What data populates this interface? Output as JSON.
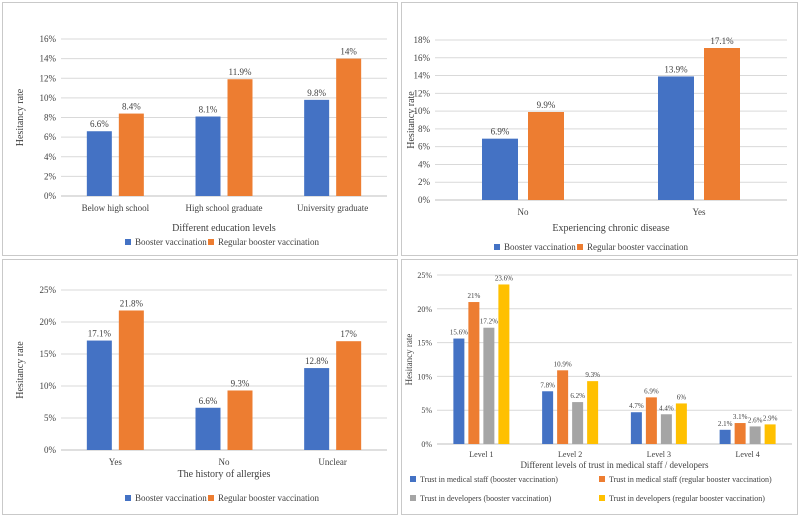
{
  "colors": {
    "booster": "#4472C4",
    "regular": "#ED7D31",
    "dev_booster": "#A5A5A5",
    "dev_regular": "#FFC000",
    "grid": "#d9d9d9",
    "axis": "#bfbfbf",
    "text": "#404040"
  },
  "chart_data": [
    {
      "type": "bar",
      "ylabel": "Hesitancy rate",
      "xlabel": "Different education levels",
      "ylim": [
        0,
        16
      ],
      "yticks": [
        0,
        2,
        4,
        6,
        8,
        10,
        12,
        14,
        16
      ],
      "ytick_labels": [
        "0%",
        "2%",
        "4%",
        "6%",
        "8%",
        "10%",
        "12%",
        "14%",
        "16%"
      ],
      "categories": [
        "Below high school",
        "High school graduate",
        "University graduate"
      ],
      "series": [
        {
          "name": "Booster vaccination",
          "color": "#4472C4",
          "values": [
            6.6,
            8.1,
            9.8
          ],
          "labels": [
            "6.6%",
            "8.1%",
            "9.8%"
          ]
        },
        {
          "name": "Regular booster vaccination",
          "color": "#ED7D31",
          "values": [
            8.4,
            11.9,
            14
          ],
          "labels": [
            "8.4%",
            "11.9%",
            "14%"
          ]
        }
      ],
      "legend": [
        "Booster vaccination",
        "Regular booster vaccination"
      ]
    },
    {
      "type": "bar",
      "ylabel": "Hesitancy rate",
      "xlabel": "Experiencing chronic disease",
      "ylim": [
        0,
        18
      ],
      "yticks": [
        0,
        2,
        4,
        6,
        8,
        10,
        12,
        14,
        16,
        18
      ],
      "ytick_labels": [
        "0%",
        "2%",
        "4%",
        "6%",
        "8%",
        "10%",
        "12%",
        "14%",
        "16%",
        "18%"
      ],
      "categories": [
        "No",
        "Yes"
      ],
      "series": [
        {
          "name": "Booster vaccination",
          "color": "#4472C4",
          "values": [
            6.9,
            13.9
          ],
          "labels": [
            "6.9%",
            "13.9%"
          ]
        },
        {
          "name": "Regular booster vaccination",
          "color": "#ED7D31",
          "values": [
            9.9,
            17.1
          ],
          "labels": [
            "9.9%",
            "17.1%"
          ]
        }
      ],
      "legend": [
        "Booster vaccination",
        "Regular booster vaccination"
      ]
    },
    {
      "type": "bar",
      "ylabel": "Hesitancy rate",
      "xlabel": "The history of allergies",
      "ylim": [
        0,
        25
      ],
      "yticks": [
        0,
        5,
        10,
        15,
        20,
        25
      ],
      "ytick_labels": [
        "0%",
        "5%",
        "10%",
        "15%",
        "20%",
        "25%"
      ],
      "categories": [
        "Yes",
        "No",
        "Unclear"
      ],
      "series": [
        {
          "name": "Booster vaccination",
          "color": "#4472C4",
          "values": [
            17.1,
            6.6,
            12.8
          ],
          "labels": [
            "17.1%",
            "6.6%",
            "12.8%"
          ]
        },
        {
          "name": "Regular booster vaccination",
          "color": "#ED7D31",
          "values": [
            21.8,
            9.3,
            17
          ],
          "labels": [
            "21.8%",
            "9.3%",
            "17%"
          ]
        }
      ],
      "legend": [
        "Booster vaccination",
        "Regular booster vaccination"
      ]
    },
    {
      "type": "bar",
      "ylabel": "Hesitancy rate",
      "xlabel": "Different levels of trust in medical staff / developers",
      "ylim": [
        0,
        25
      ],
      "yticks": [
        0,
        5,
        10,
        15,
        20,
        25
      ],
      "ytick_labels": [
        "0%",
        "5%",
        "10%",
        "15%",
        "20%",
        "25%"
      ],
      "categories": [
        "Level 1",
        "Level 2",
        "Level 3",
        "Level 4"
      ],
      "series": [
        {
          "name": "Trust in medical staff (booster vaccination)",
          "color": "#4472C4",
          "values": [
            15.6,
            7.8,
            4.7,
            2.1
          ],
          "labels": [
            "15.6%",
            "7.8%",
            "4.7%",
            "2.1%"
          ]
        },
        {
          "name": "Trust in medical staff (regular booster vaccination)",
          "color": "#ED7D31",
          "values": [
            21,
            10.9,
            6.9,
            3.1
          ],
          "labels": [
            "21%",
            "10.9%",
            "6.9%",
            "3.1%"
          ]
        },
        {
          "name": "Trust in  developers (booster vaccination)",
          "color": "#A5A5A5",
          "values": [
            17.2,
            6.2,
            4.4,
            2.6
          ],
          "labels": [
            "17.2%",
            "6.2%",
            "4.4%",
            "2.6%"
          ]
        },
        {
          "name": "Trust in  developers (regular booster vaccination)",
          "color": "#FFC000",
          "values": [
            23.6,
            9.3,
            6,
            2.9
          ],
          "labels": [
            "23.6%",
            "9.3%",
            "6%",
            "2.9%"
          ]
        }
      ],
      "legend": [
        "Trust in medical staff (booster vaccination)",
        "Trust in medical staff (regular booster vaccination)",
        "Trust in  developers (booster vaccination)",
        "Trust in  developers (regular booster vaccination)"
      ]
    }
  ]
}
